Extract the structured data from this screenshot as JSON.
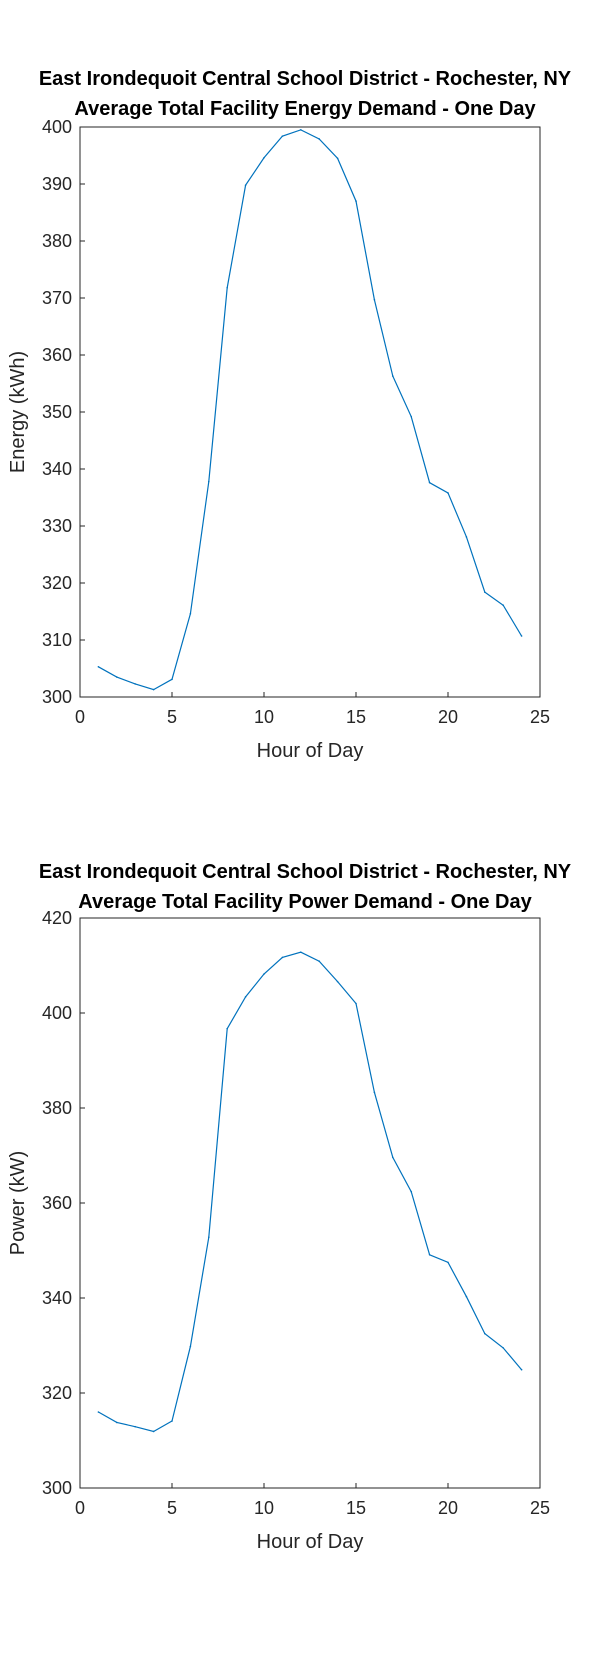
{
  "chart_data": [
    {
      "type": "line",
      "title": "East Irondequoit Central School District - Rochester, NY",
      "subtitle": "Average Total Facility Energy Demand - One Day",
      "xlabel": "Hour of Day",
      "ylabel": "Energy (kWh)",
      "xlim": [
        0,
        25
      ],
      "ylim": [
        300,
        400
      ],
      "xticks": [
        0,
        5,
        10,
        15,
        20,
        25
      ],
      "yticks": [
        300,
        310,
        320,
        330,
        340,
        350,
        360,
        370,
        380,
        390,
        400
      ],
      "grid": false,
      "line_color": "#0072BD",
      "x": [
        1,
        2,
        3,
        4,
        5,
        6,
        7,
        8,
        9,
        10,
        11,
        12,
        13,
        14,
        15,
        16,
        17,
        18,
        19,
        20,
        21,
        22,
        23,
        24
      ],
      "values": [
        305.3,
        303.5,
        302.3,
        301.3,
        303.1,
        314.6,
        337.8,
        371.8,
        389.8,
        394.6,
        398.4,
        399.5,
        397.9,
        394.5,
        387.0,
        369.7,
        356.3,
        349.2,
        337.6,
        335.8,
        328.1,
        318.4,
        316.1,
        310.7
      ]
    },
    {
      "type": "line",
      "title": "East Irondequoit Central School District - Rochester, NY",
      "subtitle": "Average Total Facility Power Demand - One Day",
      "xlabel": "Hour of Day",
      "ylabel": "Power (kW)",
      "xlim": [
        0,
        25
      ],
      "ylim": [
        300,
        420
      ],
      "xticks": [
        0,
        5,
        10,
        15,
        20,
        25
      ],
      "yticks": [
        300,
        320,
        340,
        360,
        380,
        400,
        420
      ],
      "grid": false,
      "line_color": "#0072BD",
      "x": [
        1,
        2,
        3,
        4,
        5,
        6,
        7,
        8,
        9,
        10,
        11,
        12,
        13,
        14,
        15,
        16,
        17,
        18,
        19,
        20,
        21,
        22,
        23,
        24
      ],
      "values": [
        316.0,
        313.8,
        312.9,
        311.9,
        314.1,
        329.8,
        352.8,
        396.7,
        403.4,
        408.2,
        411.7,
        412.8,
        410.9,
        406.6,
        402.0,
        383.3,
        369.6,
        362.4,
        349.1,
        347.5,
        340.3,
        332.5,
        329.5,
        324.9
      ]
    }
  ]
}
